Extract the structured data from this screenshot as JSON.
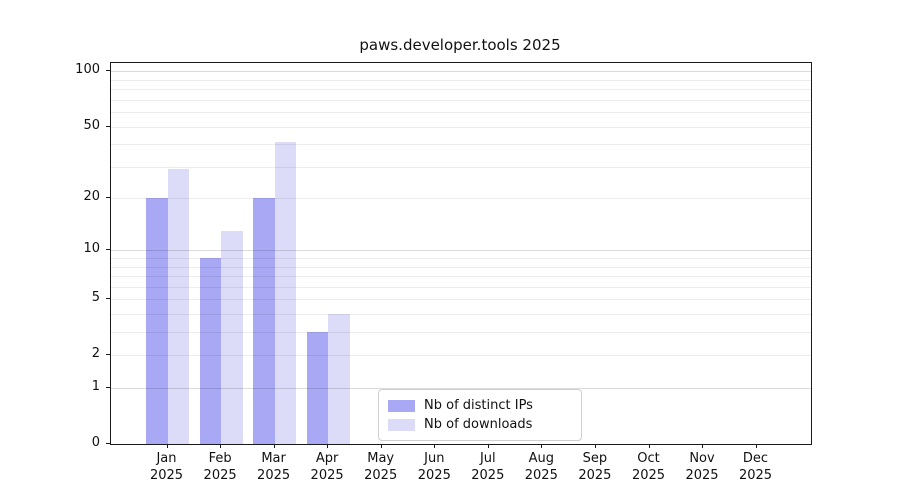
{
  "title": "paws.developer.tools 2025",
  "chart_data": {
    "type": "bar",
    "title": "paws.developer.tools 2025",
    "categories": [
      "Jan",
      "Feb",
      "Mar",
      "Apr",
      "May",
      "Jun",
      "Jul",
      "Aug",
      "Sep",
      "Oct",
      "Nov",
      "Dec"
    ],
    "year": "2025",
    "series": [
      {
        "name": "Nb of distinct IPs",
        "color": "#a8a8f5",
        "values": [
          20,
          9,
          20,
          3,
          0,
          0,
          0,
          0,
          0,
          0,
          0,
          0
        ]
      },
      {
        "name": "Nb of downloads",
        "color": "#dcdcf8",
        "values": [
          29,
          13,
          41,
          4,
          0,
          0,
          0,
          0,
          0,
          0,
          0,
          0
        ]
      }
    ],
    "y_axis": {
      "scale": "log1p",
      "ylim": [
        0,
        111
      ],
      "tick_labels": [
        100,
        50,
        20,
        10,
        5,
        2,
        1,
        0
      ],
      "major_gridlines": [
        1,
        10,
        100
      ],
      "minor_gridlines": [
        2,
        3,
        4,
        5,
        6,
        7,
        8,
        9,
        20,
        30,
        40,
        50,
        60,
        70,
        80,
        90
      ]
    },
    "x_axis": {
      "label_format": "month-over-year"
    },
    "legend": {
      "position": "lower center",
      "entries": [
        "Nb of distinct IPs",
        "Nb of downloads"
      ]
    },
    "grid": true
  }
}
